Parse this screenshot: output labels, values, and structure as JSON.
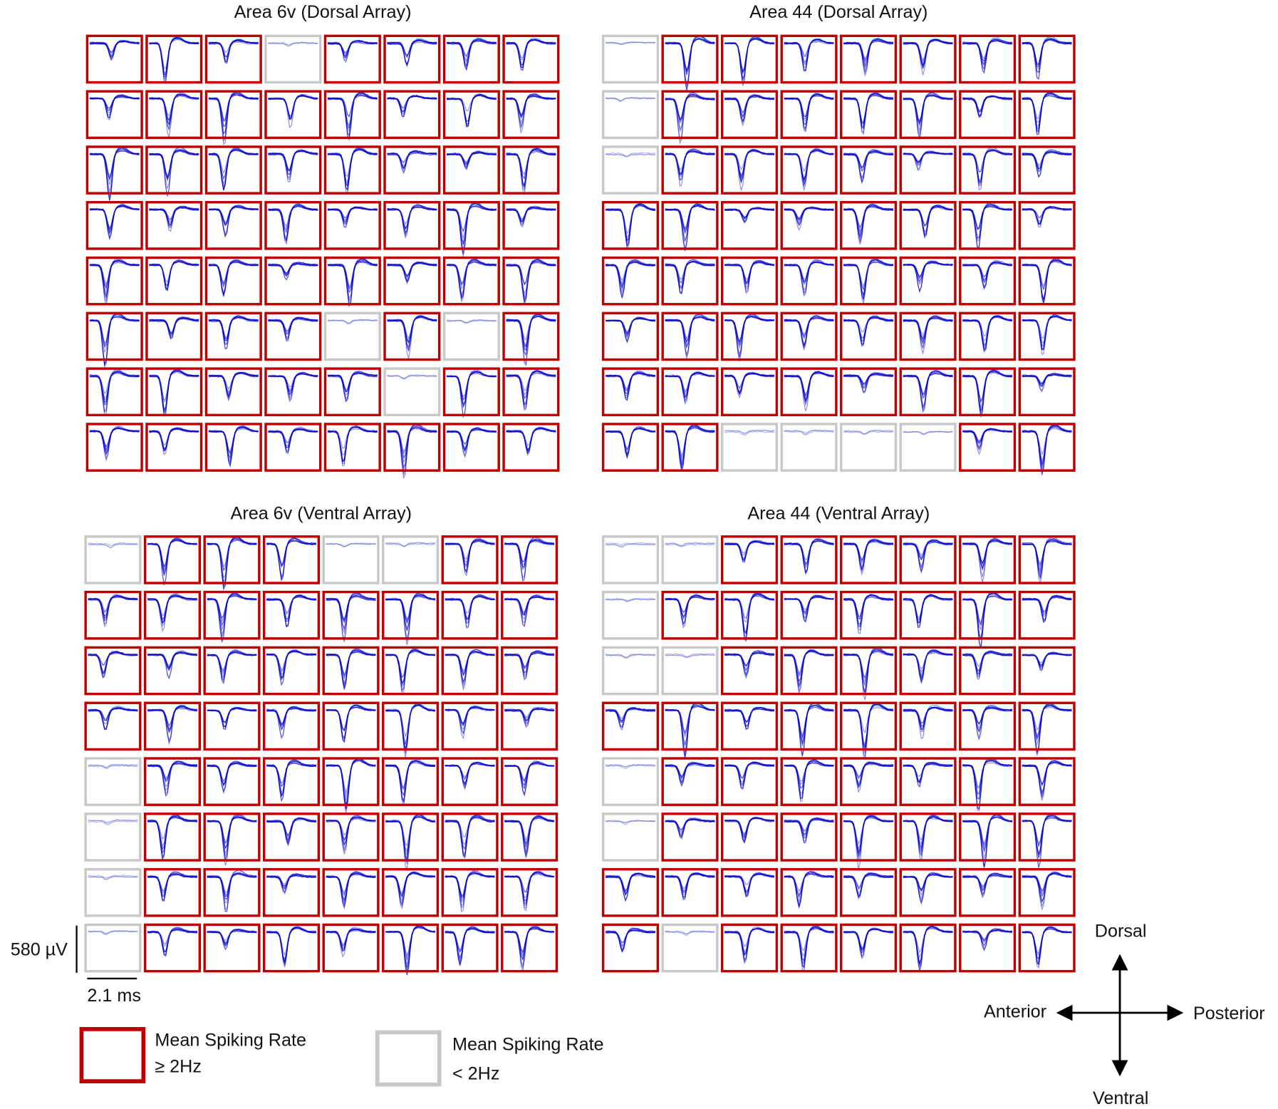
{
  "panels": [
    {
      "title": "Area 6v (Dorsal Array)",
      "active": [
        [
          true,
          true,
          true,
          false,
          true,
          true,
          true,
          true
        ],
        [
          true,
          true,
          true,
          true,
          true,
          true,
          true,
          true
        ],
        [
          true,
          true,
          true,
          true,
          true,
          true,
          true,
          true
        ],
        [
          true,
          true,
          true,
          true,
          true,
          true,
          true,
          true
        ],
        [
          true,
          true,
          true,
          true,
          true,
          true,
          true,
          true
        ],
        [
          true,
          true,
          true,
          true,
          false,
          true,
          false,
          true
        ],
        [
          true,
          true,
          true,
          true,
          true,
          false,
          true,
          true
        ],
        [
          true,
          true,
          true,
          true,
          true,
          true,
          true,
          true
        ]
      ]
    },
    {
      "title": "Area 44 (Dorsal Array)",
      "active": [
        [
          false,
          true,
          true,
          true,
          true,
          true,
          true,
          true
        ],
        [
          false,
          true,
          true,
          true,
          true,
          true,
          true,
          true
        ],
        [
          false,
          true,
          true,
          true,
          true,
          true,
          true,
          true
        ],
        [
          true,
          true,
          true,
          true,
          true,
          true,
          true,
          true
        ],
        [
          true,
          true,
          true,
          true,
          true,
          true,
          true,
          true
        ],
        [
          true,
          true,
          true,
          true,
          true,
          true,
          true,
          true
        ],
        [
          true,
          true,
          true,
          true,
          true,
          true,
          true,
          true
        ],
        [
          true,
          true,
          false,
          false,
          false,
          false,
          true,
          true
        ]
      ]
    },
    {
      "title": "Area 6v (Ventral Array)",
      "active": [
        [
          false,
          true,
          true,
          true,
          false,
          false,
          true,
          true
        ],
        [
          true,
          true,
          true,
          true,
          true,
          true,
          true,
          true
        ],
        [
          true,
          true,
          true,
          true,
          true,
          true,
          true,
          true
        ],
        [
          true,
          true,
          true,
          true,
          true,
          true,
          true,
          true
        ],
        [
          false,
          true,
          true,
          true,
          true,
          true,
          true,
          true
        ],
        [
          false,
          true,
          true,
          true,
          true,
          true,
          true,
          true
        ],
        [
          false,
          true,
          true,
          true,
          true,
          true,
          true,
          true
        ],
        [
          false,
          true,
          true,
          true,
          true,
          true,
          true,
          true
        ]
      ]
    },
    {
      "title": "Area 44 (Ventral Array)",
      "active": [
        [
          false,
          false,
          true,
          true,
          true,
          true,
          true,
          true
        ],
        [
          false,
          true,
          true,
          true,
          true,
          true,
          true,
          true
        ],
        [
          false,
          false,
          true,
          true,
          true,
          true,
          true,
          true
        ],
        [
          true,
          true,
          true,
          true,
          true,
          true,
          true,
          true
        ],
        [
          false,
          true,
          true,
          true,
          true,
          true,
          true,
          true
        ],
        [
          false,
          true,
          true,
          true,
          true,
          true,
          true,
          true
        ],
        [
          true,
          true,
          true,
          true,
          true,
          true,
          true,
          true
        ],
        [
          true,
          false,
          true,
          true,
          true,
          true,
          true,
          true
        ]
      ]
    }
  ],
  "scale_bar": {
    "voltage": "580 µV",
    "time": "2.1 ms"
  },
  "legend": [
    {
      "line1": "Mean Spiking Rate",
      "line2": "≥ 2Hz"
    },
    {
      "line1": "Mean Spiking Rate",
      "line2": "< 2Hz"
    }
  ],
  "compass": {
    "up": "Dorsal",
    "left": "Anterior",
    "right": "Posterior",
    "down": "Ventral"
  }
}
